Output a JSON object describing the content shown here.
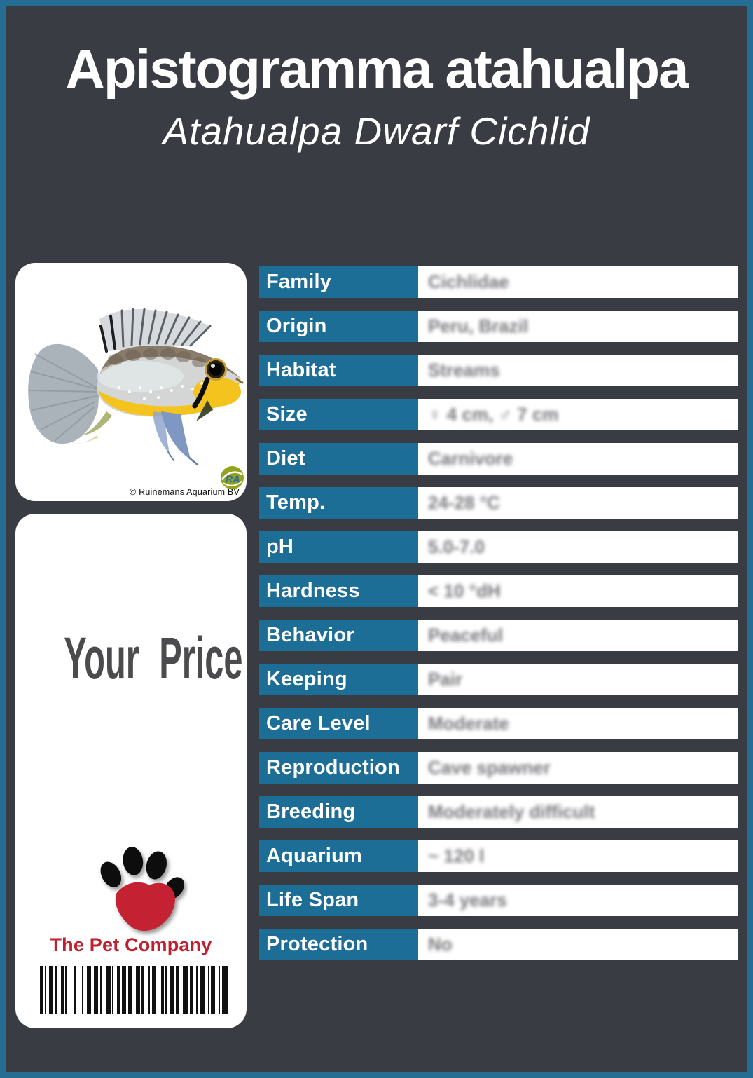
{
  "header": {
    "title": "Apistogramma atahualpa",
    "subtitle": "Atahualpa Dwarf Cichlid"
  },
  "photo_card": {
    "copyright": "© Ruinemans Aquarium BV",
    "watermark_initials": "RA"
  },
  "price_card": {
    "price_label": "Your Price",
    "company_name": "The Pet Company"
  },
  "table": {
    "rows": [
      {
        "label": "Family",
        "value": "Cichlidae"
      },
      {
        "label": "Origin",
        "value": "Peru, Brazil"
      },
      {
        "label": "Habitat",
        "value": "Streams"
      },
      {
        "label": "Size",
        "value": "♀ 4 cm, ♂ 7 cm"
      },
      {
        "label": "Diet",
        "value": "Carnivore"
      },
      {
        "label": "Temp.",
        "value": "24-28 °C"
      },
      {
        "label": "pH",
        "value": "5.0-7.0"
      },
      {
        "label": "Hardness",
        "value": "< 10 °dH"
      },
      {
        "label": "Behavior",
        "value": "Peaceful"
      },
      {
        "label": "Keeping",
        "value": "Pair"
      },
      {
        "label": "Care Level",
        "value": "Moderate"
      },
      {
        "label": "Reproduction",
        "value": "Cave spawner"
      },
      {
        "label": "Breeding",
        "value": "Moderately difficult"
      },
      {
        "label": "Aquarium",
        "value": "~ 120 l"
      },
      {
        "label": "Life Span",
        "value": "3-4 years"
      },
      {
        "label": "Protection",
        "value": "No"
      }
    ]
  },
  "barcode": {
    "bars": [
      4,
      3,
      2,
      4,
      6,
      3,
      2,
      6,
      4,
      2,
      2,
      10,
      4,
      8,
      2,
      5,
      6,
      4,
      6,
      3,
      2,
      7,
      6,
      2,
      2,
      5,
      4,
      3,
      6,
      3,
      6,
      5,
      6,
      2,
      4,
      6,
      2,
      3,
      6,
      7,
      4,
      2,
      2,
      4,
      6,
      3,
      4,
      6,
      8,
      2,
      4,
      5,
      2,
      3,
      8,
      4,
      2,
      2,
      6,
      5,
      2,
      3,
      8
    ]
  },
  "colors": {
    "page_background": "#393c43",
    "page_border": "#256d92",
    "label_cell_blue": "#1d6e97",
    "company_red": "#c01f2d",
    "price_text_gray": "#4b4b4d"
  }
}
